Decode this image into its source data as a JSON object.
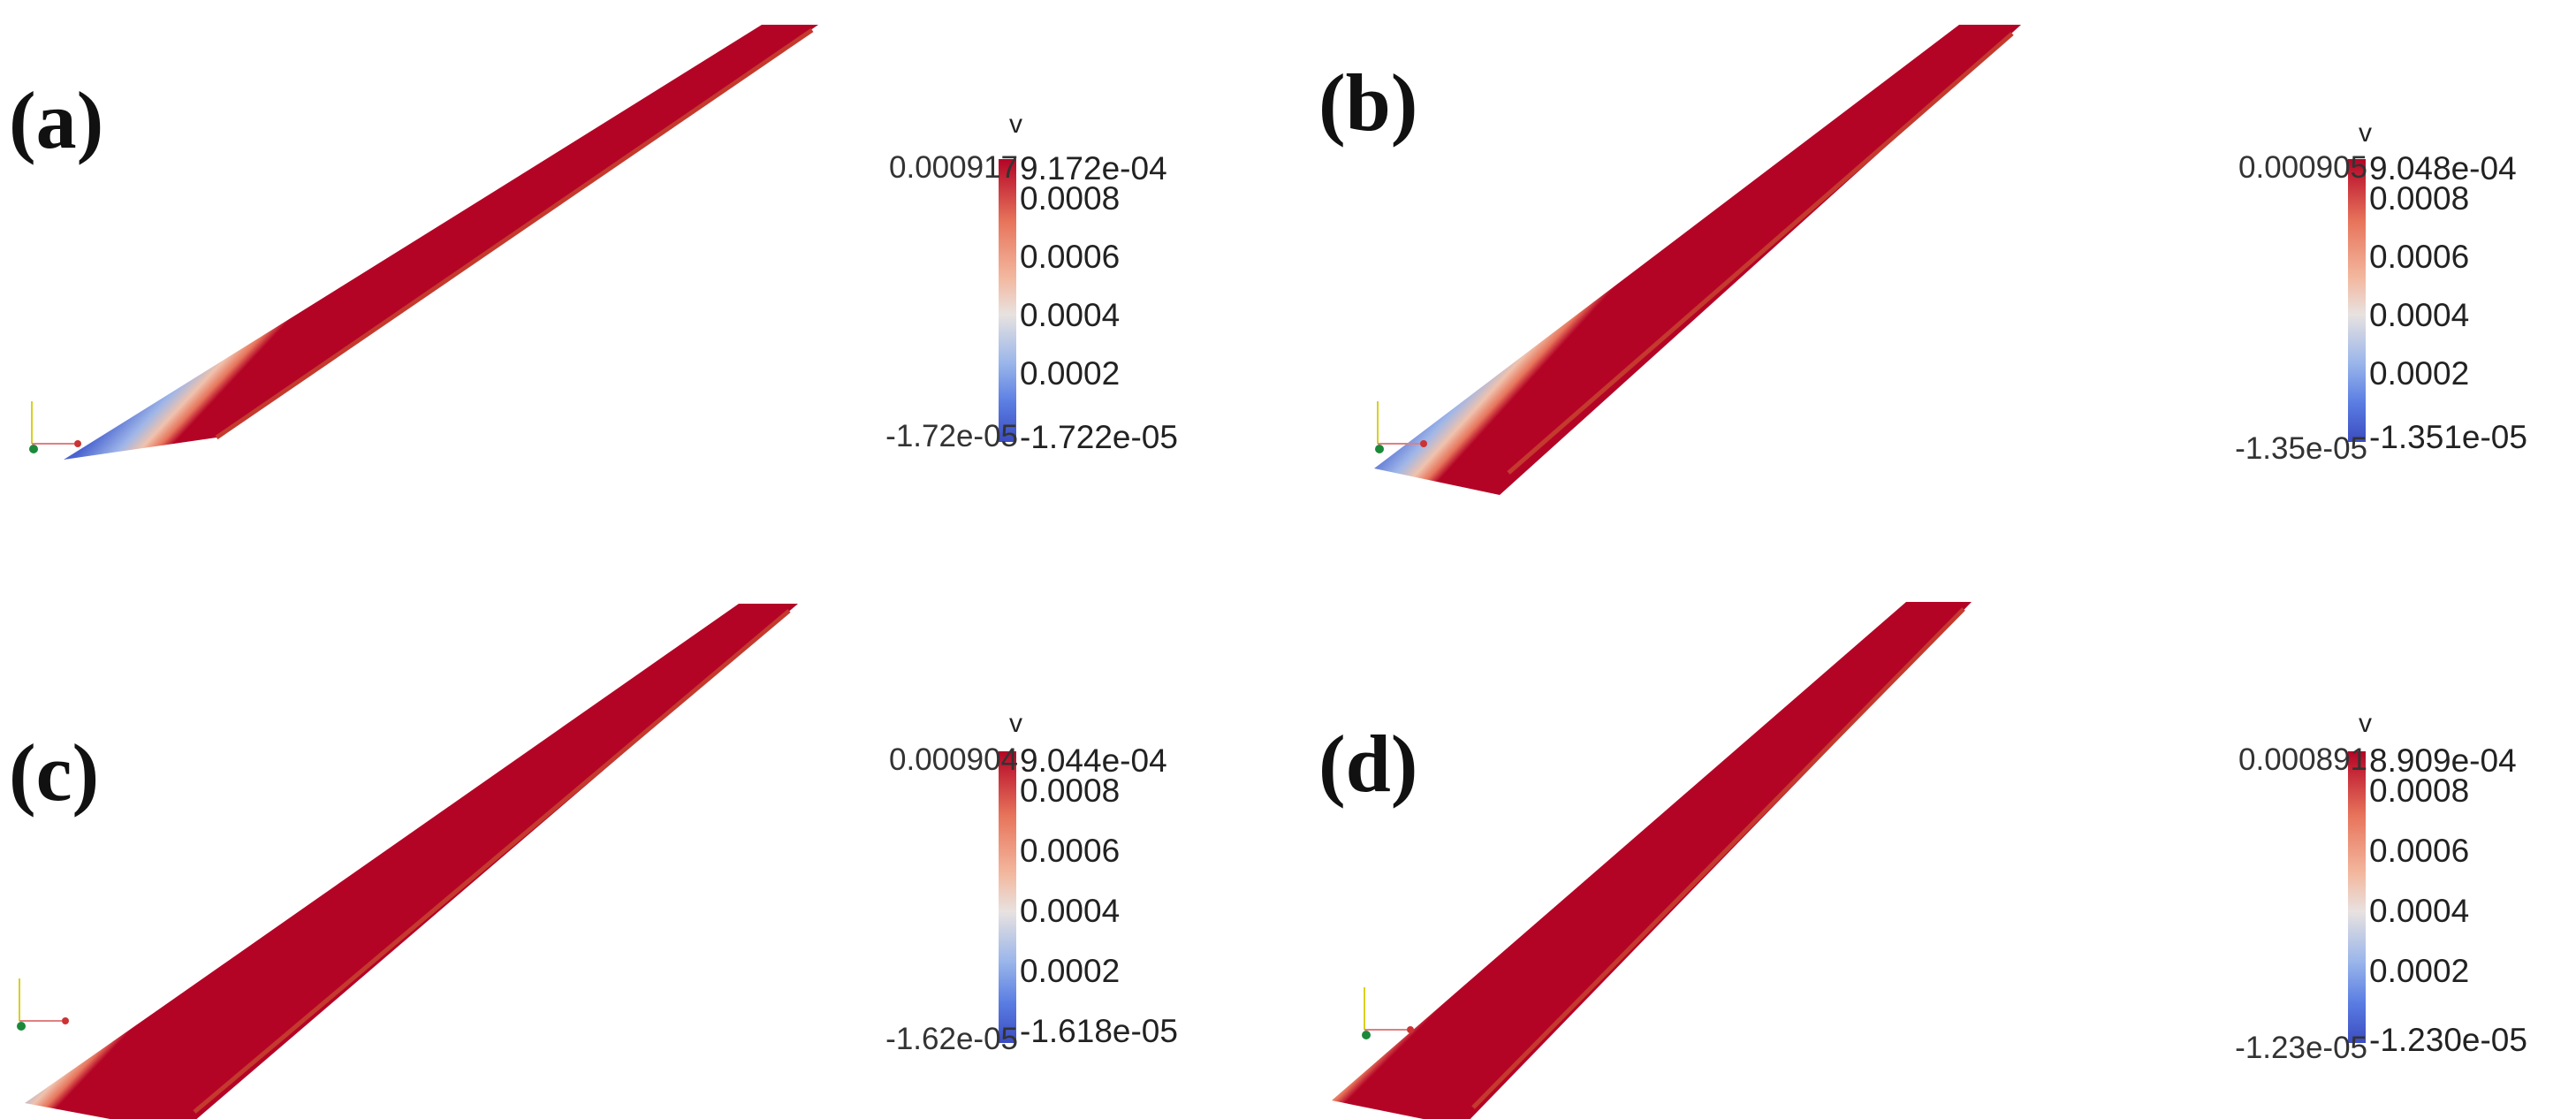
{
  "variable": "v",
  "ticks": [
    "0.0008",
    "0.0006",
    "0.0004",
    "0.0002"
  ],
  "colors": {
    "max": "#b40426",
    "mid": "#e8e2e0",
    "min": "#3b4cc0",
    "edge": "#c43a2e"
  },
  "panels": [
    {
      "id": "a",
      "label": "(a)",
      "range_max": "0.000917",
      "range_min": "-1.72e-05",
      "max_value": "9.172e-04",
      "min_value": "-1.722e-05"
    },
    {
      "id": "b",
      "label": "(b)",
      "range_max": "0.000905",
      "range_min": "-1.35e-05",
      "max_value": "9.048e-04",
      "min_value": "-1.351e-05"
    },
    {
      "id": "c",
      "label": "(c)",
      "range_max": "0.000904",
      "range_min": "-1.62e-05",
      "max_value": "9.044e-04",
      "min_value": "-1.618e-05"
    },
    {
      "id": "d",
      "label": "(d)",
      "range_max": "0.000891",
      "range_min": "-1.23e-05",
      "max_value": "8.909e-04",
      "min_value": "-1.230e-05"
    }
  ]
}
